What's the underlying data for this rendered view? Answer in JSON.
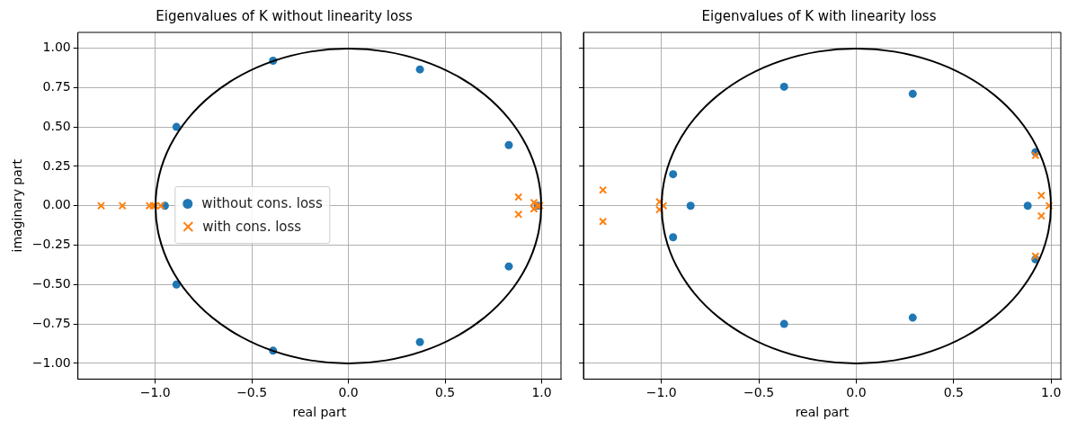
{
  "chart_data": [
    {
      "type": "scatter",
      "title": "Eigenvalues of K without linearity loss",
      "xlabel": "real part",
      "ylabel": "imaginary part",
      "xlim": [
        -1.4,
        1.1
      ],
      "ylim": [
        -1.1,
        1.1
      ],
      "xticks": [
        {
          "value": -1,
          "label": "−1.0"
        },
        {
          "value": -0.5,
          "label": "−0.5"
        },
        {
          "value": 0,
          "label": "0.0"
        },
        {
          "value": 0.5,
          "label": "0.5"
        },
        {
          "value": 1,
          "label": "1.0"
        }
      ],
      "yticks": [
        {
          "value": -1,
          "label": "−1.00"
        },
        {
          "value": -0.75,
          "label": "−0.75"
        },
        {
          "value": -0.5,
          "label": "−0.50"
        },
        {
          "value": -0.25,
          "label": "−0.25"
        },
        {
          "value": 0,
          "label": "0.00"
        },
        {
          "value": 0.25,
          "label": "0.25"
        },
        {
          "value": 0.5,
          "label": "0.50"
        },
        {
          "value": 0.75,
          "label": "0.75"
        },
        {
          "value": 1,
          "label": "1.00"
        }
      ],
      "grid": true,
      "legend": "center",
      "series": [
        {
          "name": "without cons. loss",
          "color": "#1f77b4",
          "marker": "circle",
          "x": [
            -0.39,
            0.37,
            0.83,
            0.83,
            0.37,
            -0.39,
            -0.89,
            -0.89,
            -0.95,
            0.98
          ],
          "values": [
            0.92,
            0.865,
            0.385,
            -0.385,
            -0.865,
            -0.92,
            0.5,
            -0.5,
            0,
            0
          ]
        },
        {
          "name": "with cons. loss",
          "color": "#ff7f0e",
          "marker": "cross",
          "x": [
            -1.28,
            -1.17,
            -1.03,
            -1.01,
            -1.0,
            -0.97,
            0.88,
            0.88,
            0.96,
            0.96,
            0.98,
            0.99
          ],
          "values": [
            0,
            0,
            0,
            0,
            0,
            0,
            0.055,
            -0.055,
            0.02,
            -0.02,
            0,
            0
          ]
        }
      ]
    },
    {
      "type": "scatter",
      "title": "Eigenvalues of K with linearity loss",
      "xlabel": "real part",
      "xlim": [
        -1.4,
        1.05
      ],
      "ylim": [
        -1.1,
        1.1
      ],
      "tick_labels": "x",
      "xticks": [
        {
          "value": -1,
          "label": "−1.0"
        },
        {
          "value": -0.5,
          "label": "−0.5"
        },
        {
          "value": 0,
          "label": "0.0"
        },
        {
          "value": 0.5,
          "label": "0.5"
        },
        {
          "value": 1,
          "label": "1.0"
        }
      ],
      "yticks": [
        {
          "value": -1,
          "label": null
        },
        {
          "value": -0.75,
          "label": null
        },
        {
          "value": -0.5,
          "label": null
        },
        {
          "value": -0.25,
          "label": null
        },
        {
          "value": 0,
          "label": null
        },
        {
          "value": 0.25,
          "label": null
        },
        {
          "value": 0.5,
          "label": null
        },
        {
          "value": 0.75,
          "label": null
        },
        {
          "value": 1,
          "label": null
        }
      ],
      "grid": true,
      "series": [
        {
          "color": "#1f77b4",
          "marker": "circle",
          "x": [
            -0.37,
            0.29,
            0.92,
            0.92,
            0.29,
            -0.37,
            -0.94,
            -0.94,
            -0.85,
            0.88
          ],
          "values": [
            0.755,
            0.71,
            0.34,
            -0.34,
            -0.71,
            -0.75,
            0.2,
            -0.2,
            0,
            0
          ]
        },
        {
          "color": "#ff7f0e",
          "marker": "cross",
          "x": [
            -1.3,
            -1.3,
            -1.01,
            -1.01,
            -0.99,
            0.92,
            0.92,
            0.95,
            0.95,
            0.99
          ],
          "values": [
            0.1,
            -0.1,
            0.025,
            -0.025,
            0,
            0.32,
            -0.32,
            0.065,
            -0.065,
            0
          ]
        }
      ]
    }
  ]
}
